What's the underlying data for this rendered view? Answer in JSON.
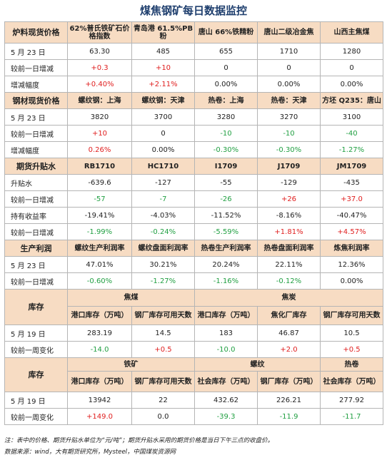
{
  "title": "煤焦钢矿每日数据监控",
  "s1": {
    "header": [
      "炉料现货价格",
      "62%普氏铁矿石价格指数",
      "青岛港 61.5%PB粉",
      "唐山 66%铁精粉",
      "唐山二级冶金焦",
      "山西主焦煤"
    ],
    "rows": [
      {
        "label": "5 月 23 日",
        "vals": [
          "63.30",
          "485",
          "655",
          "1710",
          "1280"
        ],
        "colors": [
          "",
          "",
          "",
          "",
          ""
        ]
      },
      {
        "label": "较前一日增减",
        "vals": [
          "+0.3",
          "+10",
          "0",
          "0",
          "0"
        ],
        "colors": [
          "red",
          "red",
          "",
          "",
          ""
        ]
      },
      {
        "label": "增减幅度",
        "vals": [
          "+0.40%",
          "+2.11%",
          "0.00%",
          "0.00%",
          "0.00%"
        ],
        "colors": [
          "red",
          "red",
          "",
          "",
          ""
        ]
      }
    ]
  },
  "s2": {
    "header": [
      "钢材现货价格",
      "螺纹钢：上海",
      "螺纹钢：天津",
      "热卷：上海",
      "热卷：天津",
      "方坯 Q235：唐山"
    ],
    "rows": [
      {
        "label": "5 月 23 日",
        "vals": [
          "3820",
          "3700",
          "3280",
          "3270",
          "3100"
        ],
        "colors": [
          "",
          "",
          "",
          "",
          ""
        ]
      },
      {
        "label": "较前一日增减",
        "vals": [
          "+10",
          "0",
          "-10",
          "-10",
          "-40"
        ],
        "colors": [
          "red",
          "",
          "grn",
          "grn",
          "grn"
        ]
      },
      {
        "label": "增减幅度",
        "vals": [
          "0.26%",
          "0.00%",
          "-0.30%",
          "-0.30%",
          "-1.27%"
        ],
        "colors": [
          "red",
          "",
          "grn",
          "grn",
          "grn"
        ]
      }
    ]
  },
  "s3": {
    "header": [
      "期货升贴水",
      "RB1710",
      "HC1710",
      "I1709",
      "J1709",
      "JM1709"
    ],
    "rows": [
      {
        "label": "升贴水",
        "vals": [
          "-639.6",
          "-127",
          "-55",
          "-129",
          "-435"
        ],
        "colors": [
          "",
          "",
          "",
          "",
          ""
        ]
      },
      {
        "label": "较前一日增减",
        "vals": [
          "-57",
          "-7",
          "-26",
          "+26",
          "+37.0"
        ],
        "colors": [
          "grn",
          "grn",
          "grn",
          "red",
          "red"
        ]
      },
      {
        "label": "持有收益率",
        "vals": [
          "-19.41%",
          "-4.03%",
          "-11.52%",
          "-8.16%",
          "-40.47%"
        ],
        "colors": [
          "",
          "",
          "",
          "",
          ""
        ]
      },
      {
        "label": "较前一日增减",
        "vals": [
          "-1.99%",
          "-0.24%",
          "-5.59%",
          "+1.81%",
          "+4.57%"
        ],
        "colors": [
          "grn",
          "grn",
          "grn",
          "red",
          "red"
        ]
      }
    ]
  },
  "s4": {
    "header": [
      "生产利润",
      "螺纹生产利润率",
      "螺纹盘面利润率",
      "热卷生产利润率",
      "热卷盘面利润率",
      "炼焦利润率"
    ],
    "rows": [
      {
        "label": "5 月 23 日",
        "vals": [
          "47.01%",
          "30.21%",
          "20.24%",
          "22.11%",
          "12.36%"
        ],
        "colors": [
          "",
          "",
          "",
          "",
          ""
        ]
      },
      {
        "label": "较前一日增减",
        "vals": [
          "-0.60%",
          "-1.27%",
          "-1.16%",
          "-0.12%",
          "0.00%"
        ],
        "colors": [
          "grn",
          "grn",
          "grn",
          "grn",
          ""
        ]
      }
    ]
  },
  "s5": {
    "label": "库存",
    "group_a": "焦煤",
    "group_b": "焦炭",
    "sub": [
      "港口库存（万吨）",
      "钢厂库存可用天数",
      "港口库存（万吨）",
      "焦化厂库存",
      "钢厂库存可用天数"
    ],
    "rows": [
      {
        "label": "5 月 19 日",
        "vals": [
          "283.19",
          "14.5",
          "183",
          "46.87",
          "10.5"
        ],
        "colors": [
          "",
          "",
          "",
          "",
          ""
        ]
      },
      {
        "label": "较前一周变化",
        "vals": [
          "-14.0",
          "+0.5",
          "-10.0",
          "+2.0",
          "+0.5"
        ],
        "colors": [
          "grn",
          "red",
          "grn",
          "red",
          "red"
        ]
      }
    ]
  },
  "s6": {
    "label": "库存",
    "group_a": "铁矿",
    "group_b": "螺纹",
    "group_c": "热卷",
    "sub": [
      "港口库存（万吨）",
      "钢厂库存可用天数",
      "社会库存（万吨）",
      "钢厂库存（万吨）",
      "社会库存（万吨）"
    ],
    "rows": [
      {
        "label": "5 月 19 日",
        "vals": [
          "13942",
          "22",
          "432.62",
          "226.21",
          "277.92"
        ],
        "colors": [
          "",
          "",
          "",
          "",
          ""
        ]
      },
      {
        "label": "较前一周变化",
        "vals": [
          "+149.0",
          "0.0",
          "-39.3",
          "-11.9",
          "-11.7"
        ],
        "colors": [
          "red",
          "",
          "grn",
          "grn",
          "grn"
        ]
      }
    ]
  },
  "note": "注：表中的价格、期货升贴水单位为“元/吨”；期货升贴水采用的期货价格是当日下午三点的收盘价。",
  "source": "数据来源：wind，大有期货研究所，Mysteel，中国煤炭资源网"
}
